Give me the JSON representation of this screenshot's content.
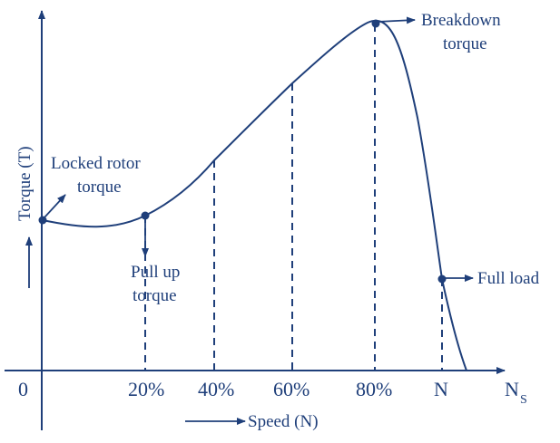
{
  "colors": {
    "ink": "#1f3f7a",
    "background": "#ffffff"
  },
  "axes": {
    "y_label": "Torque (T)",
    "x_label": "Speed (N)",
    "origin_label": "0",
    "ns_label": "N",
    "ns_subscript": "S"
  },
  "x_ticks": [
    "20%",
    "40%",
    "60%",
    "80%",
    "N"
  ],
  "annotations": {
    "locked_rotor_line1": "Locked rotor",
    "locked_rotor_line2": "torque",
    "pull_up_line1": "Pull up",
    "pull_up_line2": "torque",
    "breakdown_line1": "Breakdown",
    "breakdown_line2": "torque",
    "full_load": "Full load"
  }
}
